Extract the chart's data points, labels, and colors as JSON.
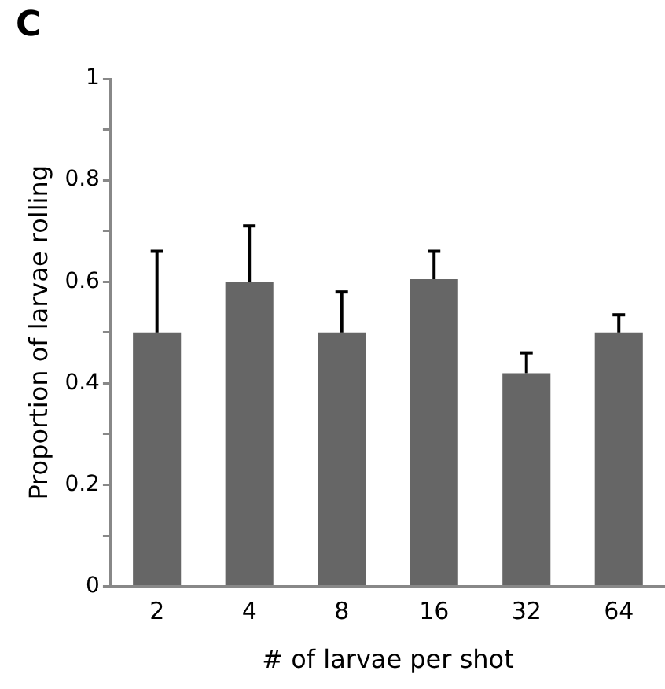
{
  "chart_data": {
    "type": "bar",
    "categories": [
      "2",
      "4",
      "8",
      "16",
      "32",
      "64"
    ],
    "values": [
      0.5,
      0.6,
      0.5,
      0.605,
      0.42,
      0.5
    ],
    "errors": [
      [
        0.5,
        0.66
      ],
      [
        0.6,
        0.71
      ],
      [
        0.5,
        0.58
      ],
      [
        0.605,
        0.66
      ],
      [
        0.42,
        0.46
      ],
      [
        0.5,
        0.535
      ]
    ],
    "color": "#666666",
    "xlabel": "# of larvae per shot",
    "ylabel": "Proportion of larvae rolling",
    "ylim": [
      0,
      1
    ],
    "yticks": [
      0,
      {
        "value": 0.1,
        "label": null
      },
      0.2,
      {
        "value": 0.3,
        "label": null
      },
      0.4,
      {
        "value": 0.5,
        "label": null
      },
      0.6,
      {
        "value": 0.7,
        "label": null
      },
      0.8,
      {
        "value": 0.9,
        "label": null
      },
      1
    ],
    "grid": false,
    "legend": false,
    "annotations": [
      "C"
    ]
  }
}
